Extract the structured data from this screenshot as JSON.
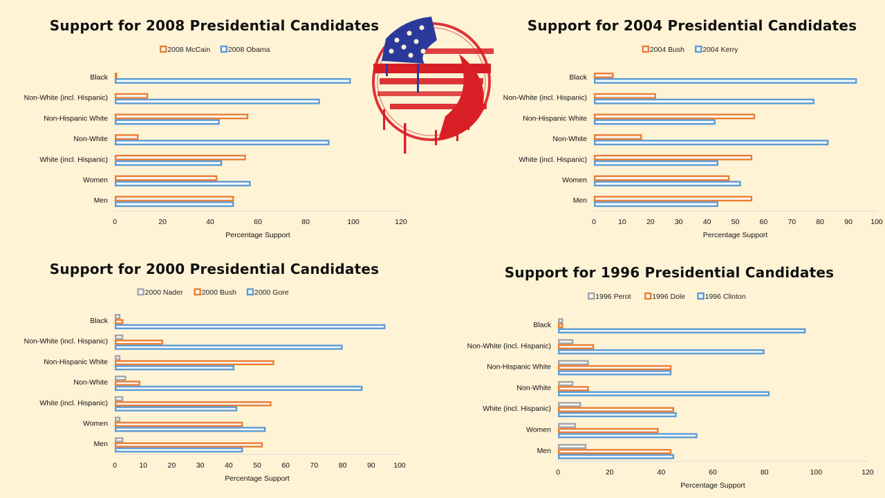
{
  "colors": {
    "background": "#fff3d6",
    "blue": "#5b9bd5",
    "orange": "#ed7d31",
    "gray": "#a5a5a5",
    "bar_fill": "#f4f8f8",
    "axis": "#d9d9d9"
  },
  "logo": {
    "icon": "distressed-american-flag-circle-icon"
  },
  "chart_data": [
    {
      "id": "c2008",
      "type": "bar",
      "orientation": "horizontal",
      "title": "Support for 2008 Presidential Candidates",
      "xlabel": "Percentage Support",
      "ylabel": "",
      "xlim": [
        0,
        120
      ],
      "ticks": [
        0,
        20,
        40,
        60,
        80,
        100,
        120
      ],
      "tick_labels": [
        "0",
        "20",
        "40",
        "60",
        "80",
        "100",
        "120"
      ],
      "legend_position": "top-center",
      "grid": false,
      "categories": [
        "Black",
        "Non-White (incl. Hispanic)",
        "Non-Hispanic White",
        "Non-White",
        "White (incl. Hispanic)",
        "Women",
        "Men"
      ],
      "series": [
        {
          "name": "2008 McCain",
          "color": "orange",
          "values": [
            1,
            14,
            56,
            10,
            55,
            43,
            50
          ]
        },
        {
          "name": "2008 Obama",
          "color": "blue",
          "values": [
            99,
            86,
            44,
            90,
            45,
            57,
            50
          ]
        }
      ]
    },
    {
      "id": "c2004",
      "type": "bar",
      "orientation": "horizontal",
      "title": "Support for 2004 Presidential Candidates",
      "xlabel": "Percentage Support",
      "ylabel": "",
      "xlim": [
        0,
        100
      ],
      "ticks": [
        0,
        10,
        20,
        30,
        40,
        50,
        60,
        70,
        80,
        90,
        100
      ],
      "tick_labels": [
        "0",
        "10",
        "20",
        "30",
        "40",
        "50",
        "60",
        "70",
        "80",
        "90",
        "100"
      ],
      "legend_position": "top-center",
      "grid": false,
      "categories": [
        "Black",
        "Non-White (incl. Hispanic)",
        "Non-Hispanic White",
        "Non-White",
        "White (incl. Hispanic)",
        "Women",
        "Men"
      ],
      "series": [
        {
          "name": "2004 Bush",
          "color": "orange",
          "values": [
            7,
            22,
            57,
            17,
            56,
            48,
            56
          ]
        },
        {
          "name": "2004 Kerry",
          "color": "blue",
          "values": [
            93,
            78,
            43,
            83,
            44,
            52,
            44
          ]
        }
      ]
    },
    {
      "id": "c2000",
      "type": "bar",
      "orientation": "horizontal",
      "title": "Support for 2000 Presidential Candidates",
      "xlabel": "Percentage Support",
      "ylabel": "",
      "xlim": [
        0,
        100
      ],
      "ticks": [
        0,
        10,
        20,
        30,
        40,
        50,
        60,
        70,
        80,
        90,
        100
      ],
      "tick_labels": [
        "0",
        "10",
        "20",
        "30",
        "40",
        "50",
        "60",
        "70",
        "80",
        "90",
        "100"
      ],
      "legend_position": "top-center",
      "grid": false,
      "categories": [
        "Black",
        "Non-White (incl. Hispanic)",
        "Non-Hispanic White",
        "Non-White",
        "White (incl. Hispanic)",
        "Women",
        "Men"
      ],
      "series": [
        {
          "name": "2000 Nader",
          "color": "gray",
          "values": [
            2,
            3,
            2,
            4,
            3,
            2,
            3
          ]
        },
        {
          "name": "2000 Bush",
          "color": "orange",
          "values": [
            3,
            17,
            56,
            9,
            55,
            45,
            52
          ]
        },
        {
          "name": "2000 Gore",
          "color": "blue",
          "values": [
            95,
            80,
            42,
            87,
            43,
            53,
            45
          ]
        }
      ]
    },
    {
      "id": "c1996",
      "type": "bar",
      "orientation": "horizontal",
      "title": "Support for 1996 Presidential Candidates",
      "xlabel": "Percentage Support",
      "ylabel": "",
      "xlim": [
        0,
        120
      ],
      "ticks": [
        0,
        20,
        40,
        60,
        80,
        100,
        120
      ],
      "tick_labels": [
        "0",
        "20",
        "40",
        "60",
        "80",
        "100",
        "120"
      ],
      "legend_position": "top-center",
      "grid": false,
      "categories": [
        "Black",
        "Non-White (incl. Hispanic)",
        "Non-Hispanic White",
        "Non-White",
        "White (incl. Hispanic)",
        "Women",
        "Men"
      ],
      "series": [
        {
          "name": "1996 Perot",
          "color": "gray",
          "values": [
            2,
            6,
            12,
            6,
            9,
            7,
            11
          ]
        },
        {
          "name": "1996 Dole",
          "color": "orange",
          "values": [
            2,
            14,
            44,
            12,
            45,
            39,
            44
          ]
        },
        {
          "name": "1996 Clinton",
          "color": "blue",
          "values": [
            96,
            80,
            44,
            82,
            46,
            54,
            45
          ]
        }
      ]
    }
  ]
}
